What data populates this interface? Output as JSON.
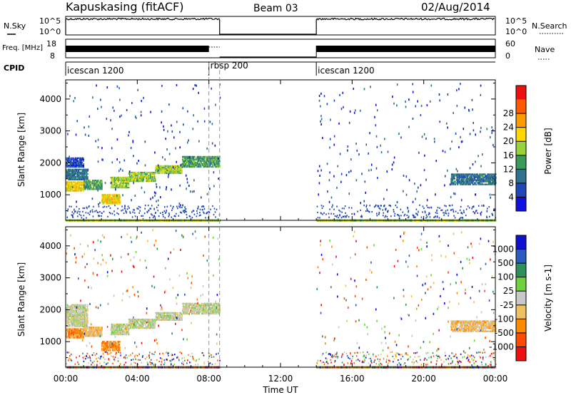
{
  "header": {
    "station": "Kapuskasing (fitACF)",
    "beam": "Beam 03",
    "date": "02/Aug/2014"
  },
  "chart_data": [
    {
      "type": "line",
      "panel": "noise",
      "ylabel_left": "N.Sky",
      "ylabel_right": "N.Search",
      "yticks_left": [
        "10^5",
        "10^0"
      ],
      "yticks_right": [
        "10^5",
        "10^0"
      ],
      "x_hours": [
        0,
        1,
        2,
        3,
        4,
        5,
        6,
        7,
        8,
        8.6,
        14,
        15,
        16,
        17,
        18,
        19,
        20,
        21,
        22,
        23,
        24
      ],
      "n_sky_level": [
        0.85,
        0.84,
        0.86,
        0.86,
        0.85,
        0.84,
        0.86,
        0.88,
        0.86,
        0.85,
        0.86,
        0.85,
        0.86,
        0.85,
        0.86,
        0.85,
        0.86,
        0.85,
        0.85,
        0.86,
        0.86
      ]
    },
    {
      "type": "line",
      "panel": "frequency",
      "ylabel_left": "Freq. [MHz]",
      "ylabel_right": "Nave",
      "yticks_left": [
        "18",
        "8"
      ],
      "yticks_right": [
        "60",
        "0"
      ],
      "freq_mhz_approx": 12,
      "nave_approx": 28
    },
    {
      "type": "table",
      "panel": "cpid",
      "label": "CPID",
      "segments": [
        {
          "name": "icescan 1200",
          "start_hour": 0,
          "end_hour": 8.0
        },
        {
          "name": "rbsp 200",
          "start_hour": 8.0,
          "end_hour": 8.6
        },
        {
          "name": "icescan 1200",
          "start_hour": 14.0,
          "end_hour": 24
        }
      ]
    },
    {
      "type": "heatmap",
      "panel": "power",
      "ylabel": "Slant Range [km]",
      "yticks": [
        1000,
        2000,
        3000,
        4000
      ],
      "ylim": [
        200,
        4600
      ],
      "xlim_hours": [
        0,
        24
      ],
      "colorbar_label": "Power [dB]",
      "colorbar_ticks": [
        "4",
        "8",
        "12",
        "16",
        "20",
        "24",
        "28"
      ],
      "colors": [
        "#1010e0",
        "#1e48b8",
        "#2f6f8f",
        "#3a9a5a",
        "#9ad23c",
        "#ffd700",
        "#ff9a00",
        "#ff5a00",
        "#ee1010"
      ],
      "echo_bands": [
        {
          "h0": 0.0,
          "h1": 1.0,
          "r0": 1150,
          "r1": 1450,
          "level": 5
        },
        {
          "h0": 0.0,
          "h1": 1.2,
          "r0": 1500,
          "r1": 1850,
          "level": 2
        },
        {
          "h0": 0.0,
          "h1": 1.0,
          "r0": 1900,
          "r1": 2200,
          "level": 1
        },
        {
          "h0": 1.0,
          "h1": 2.0,
          "r0": 1200,
          "r1": 1500,
          "level": 3
        },
        {
          "h0": 2.0,
          "h1": 3.0,
          "r0": 750,
          "r1": 1050,
          "level": 5
        },
        {
          "h0": 2.5,
          "h1": 3.5,
          "r0": 1250,
          "r1": 1600,
          "level": 4
        },
        {
          "h0": 3.5,
          "h1": 5.0,
          "r0": 1450,
          "r1": 1750,
          "level": 4
        },
        {
          "h0": 5.0,
          "h1": 6.5,
          "r0": 1700,
          "r1": 1950,
          "level": 4
        },
        {
          "h0": 6.5,
          "h1": 8.6,
          "r0": 1900,
          "r1": 2250,
          "level": 3
        },
        {
          "h0": 21.5,
          "h1": 24.0,
          "r0": 1350,
          "r1": 1700,
          "level": 2
        }
      ]
    },
    {
      "type": "heatmap",
      "panel": "velocity",
      "ylabel": "Slant Range [km]",
      "yticks": [
        1000,
        2000,
        3000,
        4000
      ],
      "ylim": [
        200,
        4600
      ],
      "xlim_hours": [
        0,
        24
      ],
      "xticks": [
        "00:00",
        "04:00",
        "08:00",
        "12:00",
        "16:00",
        "20:00",
        "00:00"
      ],
      "xlabel": "Time UT",
      "colorbar_label": "Velocity [m s-1]",
      "colorbar_ticks": [
        "1000",
        "500",
        "100",
        "25",
        "-25",
        "-100",
        "-500",
        "-1000"
      ],
      "colors": [
        "#1010d0",
        "#2a5cc0",
        "#2f8f5a",
        "#6fd23c",
        "#c8c8c8",
        "#f0c060",
        "#ff8a00",
        "#ff4a00",
        "#ee1010"
      ],
      "echo_bands": [
        {
          "h0": 0.0,
          "h1": 1.0,
          "r0": 1150,
          "r1": 1450,
          "level": 6
        },
        {
          "h0": 0.0,
          "h1": 1.2,
          "r0": 1500,
          "r1": 2200,
          "level": 4
        },
        {
          "h0": 1.0,
          "h1": 2.0,
          "r0": 1200,
          "r1": 1500,
          "level": 5
        },
        {
          "h0": 2.0,
          "h1": 3.0,
          "r0": 750,
          "r1": 1050,
          "level": 6
        },
        {
          "h0": 2.5,
          "h1": 3.5,
          "r0": 1250,
          "r1": 1600,
          "level": 4
        },
        {
          "h0": 3.5,
          "h1": 5.0,
          "r0": 1450,
          "r1": 1750,
          "level": 4
        },
        {
          "h0": 5.0,
          "h1": 6.5,
          "r0": 1700,
          "r1": 1950,
          "level": 4
        },
        {
          "h0": 6.5,
          "h1": 8.6,
          "r0": 1900,
          "r1": 2250,
          "level": 4
        },
        {
          "h0": 21.5,
          "h1": 24.0,
          "r0": 1350,
          "r1": 1700,
          "level": 5
        }
      ]
    }
  ]
}
